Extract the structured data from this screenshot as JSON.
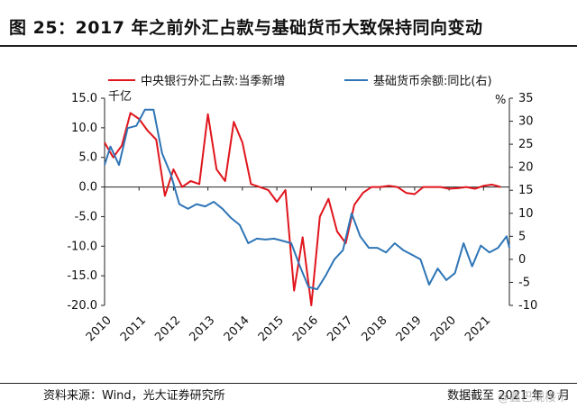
{
  "title": "图 25：2017 年之前外汇占款与基础货币大致保持同向变动",
  "footer": {
    "source": "资料来源：Wind，光大证券研究所",
    "date": "数据截至 2021 年 9 月"
  },
  "watermark": "@鑫巴观楼市",
  "colors": {
    "red": "#e0151c",
    "blue": "#2e75b6"
  },
  "chart_data": {
    "type": "line",
    "left_axis": {
      "unit_label": "千亿",
      "ylim": [
        -20,
        15
      ],
      "ticks": [
        "15.0",
        "10.0",
        "5.0",
        "0.0",
        "-5.0",
        "-10.0",
        "-15.0",
        "-20.0"
      ]
    },
    "right_axis": {
      "unit_label": "%",
      "ylim": [
        -10,
        35
      ],
      "ticks": [
        "35",
        "30",
        "25",
        "20",
        "15",
        "10",
        "5",
        "0",
        "-5",
        "-10"
      ]
    },
    "x_ticks": [
      "2010",
      "2011",
      "2012",
      "2013",
      "2014",
      "2015",
      "2016",
      "2017",
      "2018",
      "2019",
      "2020",
      "2021"
    ],
    "x_range": [
      2010,
      2021.75
    ],
    "series": [
      {
        "name": "中央银行外汇占款:当季新增",
        "axis": "left",
        "color": "#e0151c",
        "points": [
          [
            2010.0,
            7.5
          ],
          [
            2010.25,
            5.0
          ],
          [
            2010.5,
            7.0
          ],
          [
            2010.75,
            12.5
          ],
          [
            2011.0,
            11.5
          ],
          [
            2011.25,
            9.5
          ],
          [
            2011.5,
            8.0
          ],
          [
            2011.75,
            -1.5
          ],
          [
            2012.0,
            3.0
          ],
          [
            2012.25,
            0.0
          ],
          [
            2012.5,
            1.0
          ],
          [
            2012.75,
            0.5
          ],
          [
            2013.0,
            12.3
          ],
          [
            2013.25,
            3.0
          ],
          [
            2013.5,
            1.0
          ],
          [
            2013.75,
            11.0
          ],
          [
            2014.0,
            7.5
          ],
          [
            2014.25,
            0.5
          ],
          [
            2014.5,
            0.0
          ],
          [
            2014.75,
            -0.5
          ],
          [
            2015.0,
            -2.5
          ],
          [
            2015.25,
            -0.5
          ],
          [
            2015.5,
            -17.5
          ],
          [
            2015.75,
            -8.5
          ],
          [
            2016.0,
            -20.0
          ],
          [
            2016.25,
            -5.0
          ],
          [
            2016.5,
            -2.0
          ],
          [
            2016.75,
            -7.5
          ],
          [
            2017.0,
            -9.5
          ],
          [
            2017.25,
            -3.0
          ],
          [
            2017.5,
            -1.0
          ],
          [
            2017.75,
            0.0
          ],
          [
            2018.0,
            0.0
          ],
          [
            2018.25,
            0.2
          ],
          [
            2018.5,
            0.0
          ],
          [
            2018.75,
            -1.0
          ],
          [
            2019.0,
            -1.2
          ],
          [
            2019.25,
            0.0
          ],
          [
            2019.5,
            0.0
          ],
          [
            2019.75,
            0.0
          ],
          [
            2020.0,
            -0.3
          ],
          [
            2020.25,
            -0.2
          ],
          [
            2020.5,
            0.0
          ],
          [
            2020.75,
            -0.3
          ],
          [
            2021.0,
            0.2
          ],
          [
            2021.25,
            0.4
          ],
          [
            2021.5,
            0.0
          ]
        ]
      },
      {
        "name": "基础货币余额:同比(右)",
        "axis": "right",
        "color": "#2e75b6",
        "points": [
          [
            2010.0,
            20.5
          ],
          [
            2010.17,
            24.5
          ],
          [
            2010.42,
            20.5
          ],
          [
            2010.67,
            28.5
          ],
          [
            2010.92,
            29.0
          ],
          [
            2011.17,
            32.5
          ],
          [
            2011.42,
            32.5
          ],
          [
            2011.67,
            23.0
          ],
          [
            2011.92,
            18.5
          ],
          [
            2012.17,
            12.0
          ],
          [
            2012.42,
            11.0
          ],
          [
            2012.67,
            12.0
          ],
          [
            2012.92,
            11.5
          ],
          [
            2013.17,
            12.5
          ],
          [
            2013.42,
            11.0
          ],
          [
            2013.67,
            9.0
          ],
          [
            2013.92,
            7.5
          ],
          [
            2014.17,
            3.5
          ],
          [
            2014.42,
            4.5
          ],
          [
            2014.67,
            4.3
          ],
          [
            2014.92,
            4.5
          ],
          [
            2015.17,
            4.0
          ],
          [
            2015.42,
            3.5
          ],
          [
            2015.67,
            -1.5
          ],
          [
            2015.92,
            -6.0
          ],
          [
            2016.17,
            -6.5
          ],
          [
            2016.42,
            -3.5
          ],
          [
            2016.67,
            0.0
          ],
          [
            2016.92,
            2.0
          ],
          [
            2017.17,
            10.0
          ],
          [
            2017.42,
            5.0
          ],
          [
            2017.67,
            2.5
          ],
          [
            2017.92,
            2.5
          ],
          [
            2018.17,
            1.5
          ],
          [
            2018.42,
            3.5
          ],
          [
            2018.67,
            2.0
          ],
          [
            2018.92,
            1.0
          ],
          [
            2019.17,
            0.0
          ],
          [
            2019.42,
            -5.5
          ],
          [
            2019.67,
            -2.0
          ],
          [
            2019.92,
            -4.5
          ],
          [
            2020.17,
            -3.0
          ],
          [
            2020.42,
            3.5
          ],
          [
            2020.67,
            -1.5
          ],
          [
            2020.92,
            3.0
          ],
          [
            2021.17,
            1.5
          ],
          [
            2021.42,
            2.5
          ],
          [
            2021.67,
            5.0
          ],
          [
            2021.75,
            2.5
          ]
        ]
      }
    ],
    "legend_placement": "top"
  }
}
